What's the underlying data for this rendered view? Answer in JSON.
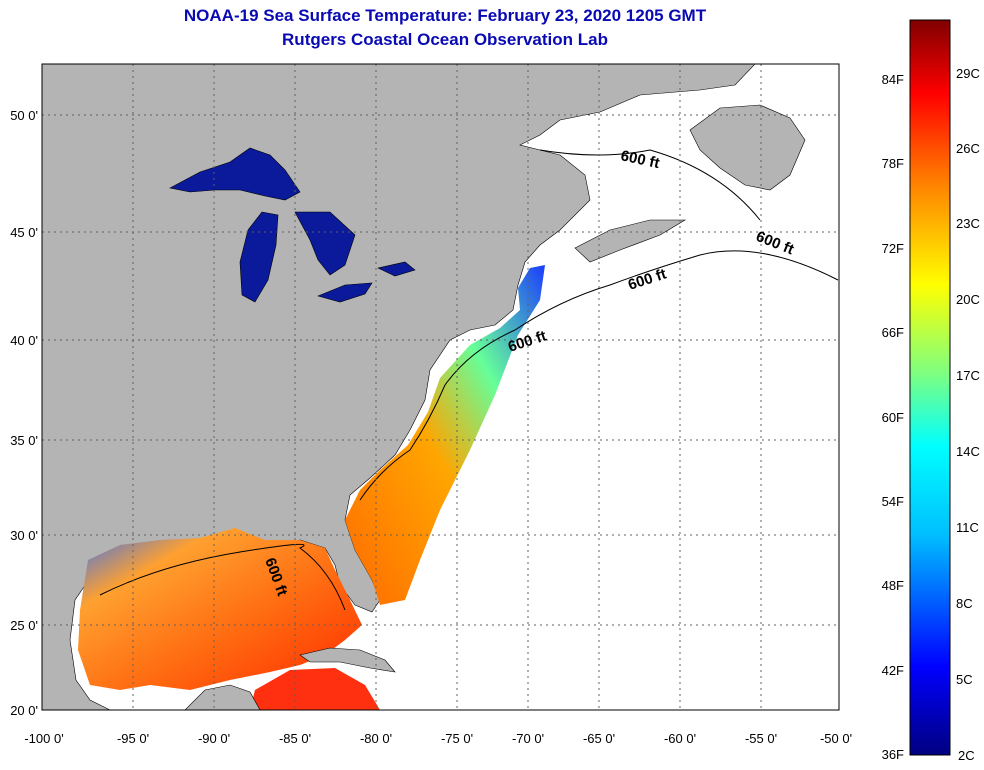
{
  "title_line1": "NOAA-19 Sea Surface Temperature:  February 23, 2020 1205 GMT",
  "title_line2": "Rutgers Coastal Ocean Observation Lab",
  "map": {
    "lon_ticks": [
      "-100 0'",
      "-95 0'",
      "-90 0'",
      "-85 0'",
      "-80 0'",
      "-75 0'",
      "-70 0'",
      "-65 0'",
      "-60 0'",
      "-55 0'",
      "-50 0'"
    ],
    "lat_ticks": [
      "50 0'",
      "45 0'",
      "40 0'",
      "35 0'",
      "30 0'",
      "25 0'",
      "20 0'"
    ],
    "contour_label": "600 ft",
    "land_color": "#b4b4b4",
    "nodata_color": "#ffffff",
    "gridlines": "dotted"
  },
  "colorbar": {
    "f_labels": [
      "84F",
      "78F",
      "72F",
      "66F",
      "60F",
      "54F",
      "48F",
      "42F",
      "36F"
    ],
    "c_labels": [
      "29C",
      "26C",
      "23C",
      "20C",
      "17C",
      "14C",
      "11C",
      "8C",
      "5C",
      "2C"
    ],
    "colors": [
      "#000080",
      "#0000ff",
      "#00bfff",
      "#00ffff",
      "#7fff7f",
      "#ffff00",
      "#ff7f00",
      "#ff0000",
      "#800000"
    ]
  }
}
